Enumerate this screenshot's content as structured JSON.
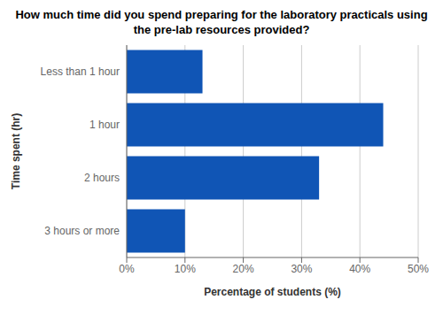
{
  "chart_data": {
    "type": "bar",
    "orientation": "horizontal",
    "title": "How much time did you spend preparing for the laboratory practicals using\nthe pre-lab resources provided?",
    "xlabel": "Percentage of students (%)",
    "ylabel": "Time spent (hr)",
    "categories": [
      "Less than 1 hour",
      "1 hour",
      "2 hours",
      "3 hours or more"
    ],
    "values": [
      13,
      44,
      33,
      10
    ],
    "color": "#1055b5",
    "xlim": [
      0,
      50
    ],
    "xticks": [
      {
        "value": 0,
        "label": "0%"
      },
      {
        "value": 10,
        "label": "10%"
      },
      {
        "value": 20,
        "label": "20%"
      },
      {
        "value": 30,
        "label": "30%"
      },
      {
        "value": 40,
        "label": "40%"
      },
      {
        "value": 50,
        "label": "50%"
      }
    ],
    "grid": true
  }
}
